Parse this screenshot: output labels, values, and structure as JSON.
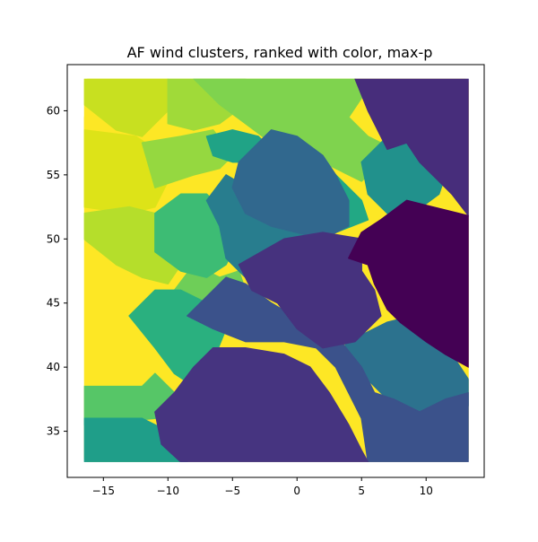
{
  "chart_data": {
    "type": "heatmap",
    "title": "AF wind clusters, ranked with color, max-p",
    "xlabel": "",
    "ylabel": "",
    "xlim": [
      -17.8,
      14.5
    ],
    "ylim": [
      31.4,
      63.6
    ],
    "x_ticks": [
      -15,
      -10,
      -5,
      0,
      5,
      10
    ],
    "y_ticks": [
      35,
      40,
      45,
      50,
      55,
      60
    ],
    "x_tick_labels": [
      "−15",
      "−10",
      "−5",
      "0",
      "5",
      "10"
    ],
    "y_tick_labels": [
      "35",
      "40",
      "45",
      "50",
      "55",
      "60"
    ],
    "grid": false,
    "legend": "none",
    "colormap": "viridis",
    "data_extent": {
      "x": [
        -16.5,
        13.3
      ],
      "y": [
        32.6,
        62.5
      ]
    },
    "regions": [
      {
        "rank": 0.03,
        "color": "#440154",
        "points": [
          [
            5,
            50.5
          ],
          [
            6.5,
            51.5
          ],
          [
            8.5,
            53
          ],
          [
            10.5,
            52.5
          ],
          [
            13.3,
            51.8
          ],
          [
            13.3,
            40
          ],
          [
            11.5,
            41
          ],
          [
            10,
            42
          ],
          [
            8,
            43.5
          ],
          [
            7,
            44.5
          ],
          [
            6,
            46.5
          ],
          [
            5.5,
            48
          ],
          [
            4,
            48.5
          ]
        ]
      },
      {
        "rank": 0.12,
        "color": "#472d7b",
        "points": [
          [
            4.5,
            62.5
          ],
          [
            13.3,
            62.5
          ],
          [
            13.3,
            51.8
          ],
          [
            12,
            53.5
          ],
          [
            11,
            54.5
          ],
          [
            9.5,
            56
          ],
          [
            8.5,
            57.5
          ],
          [
            7,
            57
          ],
          [
            5.5,
            60
          ]
        ]
      },
      {
        "rank": 0.18,
        "color": "#46327e",
        "points": [
          [
            -1,
            50
          ],
          [
            2,
            50.5
          ],
          [
            5,
            50
          ],
          [
            5,
            47.5
          ],
          [
            6,
            46
          ],
          [
            6.5,
            44
          ],
          [
            4.5,
            42
          ],
          [
            2,
            41.5
          ],
          [
            0,
            43
          ],
          [
            -1.5,
            45
          ],
          [
            -3.5,
            46
          ],
          [
            -4.5,
            48
          ]
        ]
      },
      {
        "rank": 0.22,
        "color": "#463480",
        "points": [
          [
            -11,
            36.5
          ],
          [
            -9.5,
            38
          ],
          [
            -8,
            40
          ],
          [
            -6.5,
            41.5
          ],
          [
            -4,
            41.5
          ],
          [
            -1,
            41
          ],
          [
            1,
            40
          ],
          [
            2.5,
            38
          ],
          [
            4,
            35.5
          ],
          [
            5,
            33.5
          ],
          [
            5.5,
            32.6
          ],
          [
            -9,
            32.6
          ],
          [
            -10.5,
            34
          ]
        ]
      },
      {
        "rank": 0.32,
        "color": "#3b528b",
        "points": [
          [
            -8.5,
            44
          ],
          [
            -6.5,
            43
          ],
          [
            -4,
            42
          ],
          [
            -1,
            42
          ],
          [
            1.5,
            41.5
          ],
          [
            3,
            40
          ],
          [
            4,
            38
          ],
          [
            5,
            36
          ],
          [
            5.5,
            32.6
          ],
          [
            13.3,
            32.6
          ],
          [
            13.3,
            38
          ],
          [
            11.5,
            37.5
          ],
          [
            9.5,
            36.5
          ],
          [
            7.5,
            37.5
          ],
          [
            6,
            38
          ],
          [
            5,
            40
          ],
          [
            3,
            42.5
          ],
          [
            0.5,
            43.5
          ],
          [
            -2,
            45
          ],
          [
            -4,
            46.5
          ],
          [
            -5.5,
            47
          ]
        ]
      },
      {
        "rank": 0.42,
        "color": "#31688e",
        "points": [
          [
            -2,
            58.5
          ],
          [
            0,
            58
          ],
          [
            2,
            56.5
          ],
          [
            3,
            55
          ],
          [
            4,
            53
          ],
          [
            4,
            51
          ],
          [
            2,
            50
          ],
          [
            0,
            50.5
          ],
          [
            -2,
            51
          ],
          [
            -4,
            52
          ],
          [
            -5,
            54
          ],
          [
            -4.5,
            56
          ]
        ]
      },
      {
        "rank": 0.45,
        "color": "#2c728e",
        "points": [
          [
            3,
            44
          ],
          [
            5,
            42.5
          ],
          [
            7,
            43.5
          ],
          [
            9,
            44
          ],
          [
            10.5,
            43
          ],
          [
            12,
            41
          ],
          [
            13.3,
            39
          ],
          [
            13.3,
            37
          ],
          [
            11,
            37
          ],
          [
            9,
            36
          ],
          [
            7,
            37.5
          ],
          [
            5.5,
            39
          ],
          [
            4,
            41
          ]
        ]
      },
      {
        "rank": 0.52,
        "color": "#287d8e",
        "points": [
          [
            -5.5,
            55
          ],
          [
            -3,
            53.5
          ],
          [
            -1,
            52
          ],
          [
            1,
            51.5
          ],
          [
            2,
            50
          ],
          [
            0,
            49
          ],
          [
            -2,
            48
          ],
          [
            -4,
            47
          ],
          [
            -5.5,
            48.5
          ],
          [
            -6,
            51
          ],
          [
            -7,
            53
          ]
        ]
      },
      {
        "rank": 0.58,
        "color": "#21918c",
        "points": [
          [
            5,
            56
          ],
          [
            7,
            58
          ],
          [
            9,
            58.5
          ],
          [
            11.5,
            55
          ],
          [
            11,
            53.5
          ],
          [
            9,
            52
          ],
          [
            7,
            52
          ],
          [
            5.5,
            53.5
          ]
        ]
      },
      {
        "rank": 0.62,
        "color": "#1f9e89",
        "points": [
          [
            -16.5,
            36
          ],
          [
            -12,
            36
          ],
          [
            -10,
            35
          ],
          [
            -8.5,
            32.6
          ],
          [
            -16.5,
            32.6
          ]
        ]
      },
      {
        "rank": 0.63,
        "color": "#20a386",
        "points": [
          [
            -7,
            58
          ],
          [
            -5,
            58.5
          ],
          [
            -3,
            58
          ],
          [
            -2,
            57
          ],
          [
            -3,
            56
          ],
          [
            -5,
            56
          ],
          [
            -6.5,
            56.5
          ]
        ]
      },
      {
        "rank": 0.66,
        "color": "#22a884",
        "points": [
          [
            -1,
            56
          ],
          [
            1,
            56.5
          ],
          [
            3,
            55
          ],
          [
            5,
            53
          ],
          [
            5.5,
            51.5
          ],
          [
            3,
            50.5
          ],
          [
            0.5,
            50.5
          ],
          [
            -1,
            51.5
          ],
          [
            -2,
            53.5
          ]
        ]
      },
      {
        "rank": 0.7,
        "color": "#2ab07f",
        "points": [
          [
            -13,
            44
          ],
          [
            -11,
            41.5
          ],
          [
            -9.5,
            39.5
          ],
          [
            -8,
            38.5
          ],
          [
            -6.5,
            40.5
          ],
          [
            -5.5,
            43
          ],
          [
            -7,
            45
          ],
          [
            -9,
            46
          ],
          [
            -11,
            46
          ]
        ]
      },
      {
        "rank": 0.74,
        "color": "#3dbc74",
        "points": [
          [
            -11,
            52
          ],
          [
            -9,
            53.5
          ],
          [
            -7,
            53.5
          ],
          [
            -5.5,
            52
          ],
          [
            -4.5,
            50
          ],
          [
            -5.5,
            48
          ],
          [
            -7,
            47
          ],
          [
            -9,
            47.5
          ],
          [
            -11,
            49
          ]
        ]
      },
      {
        "rank": 0.8,
        "color": "#56c667",
        "points": [
          [
            -16.5,
            38.5
          ],
          [
            -12,
            38.5
          ],
          [
            -11,
            39.5
          ],
          [
            -9.5,
            38
          ],
          [
            -11,
            36
          ],
          [
            -16.5,
            35.5
          ]
        ]
      },
      {
        "rank": 0.83,
        "color": "#6ece58",
        "points": [
          [
            -8,
            48
          ],
          [
            -6,
            47
          ],
          [
            -4.5,
            47.5
          ],
          [
            -4,
            46
          ],
          [
            -5,
            44
          ],
          [
            -6.5,
            43
          ],
          [
            -8.5,
            44
          ],
          [
            -9.5,
            46
          ]
        ]
      },
      {
        "rank": 0.86,
        "color": "#7fd34e",
        "points": [
          [
            -8,
            62.5
          ],
          [
            4.5,
            62.5
          ],
          [
            5,
            61
          ],
          [
            4,
            59.5
          ],
          [
            5.5,
            58
          ],
          [
            7.5,
            57
          ],
          [
            5,
            54.5
          ],
          [
            3,
            55.5
          ],
          [
            1,
            56.5
          ],
          [
            -2,
            57.5
          ],
          [
            -4,
            59
          ],
          [
            -6,
            60.5
          ]
        ]
      },
      {
        "rank": 0.89,
        "color": "#95d840",
        "points": [
          [
            -12,
            57.5
          ],
          [
            -9,
            58
          ],
          [
            -6.5,
            58.5
          ],
          [
            -5,
            56.5
          ],
          [
            -6,
            55.5
          ],
          [
            -8,
            55
          ],
          [
            -11,
            54
          ]
        ]
      },
      {
        "rank": 0.92,
        "color": "#a0da39",
        "points": [
          [
            -10,
            62.5
          ],
          [
            -4,
            62.5
          ],
          [
            -4,
            60.5
          ],
          [
            -6,
            59
          ],
          [
            -8,
            58.5
          ],
          [
            -10,
            59
          ]
        ]
      },
      {
        "rank": 0.94,
        "color": "#b5de2b",
        "points": [
          [
            -16.5,
            50
          ],
          [
            -14,
            48
          ],
          [
            -12,
            47
          ],
          [
            -10,
            46.5
          ],
          [
            -9,
            48
          ],
          [
            -9.5,
            50
          ],
          [
            -11,
            52
          ],
          [
            -13,
            52.5
          ],
          [
            -16.5,
            52
          ]
        ]
      },
      {
        "rank": 0.96,
        "color": "#c8e020",
        "points": [
          [
            -16.5,
            62.5
          ],
          [
            -10,
            62.5
          ],
          [
            -10,
            60
          ],
          [
            -12,
            58
          ],
          [
            -14,
            58.5
          ],
          [
            -16.5,
            60.5
          ]
        ]
      },
      {
        "rank": 0.98,
        "color": "#dde318",
        "points": [
          [
            -16.5,
            52.5
          ],
          [
            -13,
            52
          ],
          [
            -11,
            52.5
          ],
          [
            -10,
            54.5
          ],
          [
            -11,
            57
          ],
          [
            -12.5,
            58
          ],
          [
            -16.5,
            58.5
          ]
        ]
      },
      {
        "rank": 1.0,
        "color": "#fde725",
        "points": [
          [
            -16.5,
            59.5
          ],
          [
            -15,
            60
          ],
          [
            -14,
            58.5
          ],
          [
            -12.5,
            57.5
          ],
          [
            -12,
            55.5
          ],
          [
            -13.5,
            53.5
          ],
          [
            -14.5,
            52.5
          ],
          [
            -16.5,
            52.5
          ]
        ]
      }
    ]
  }
}
